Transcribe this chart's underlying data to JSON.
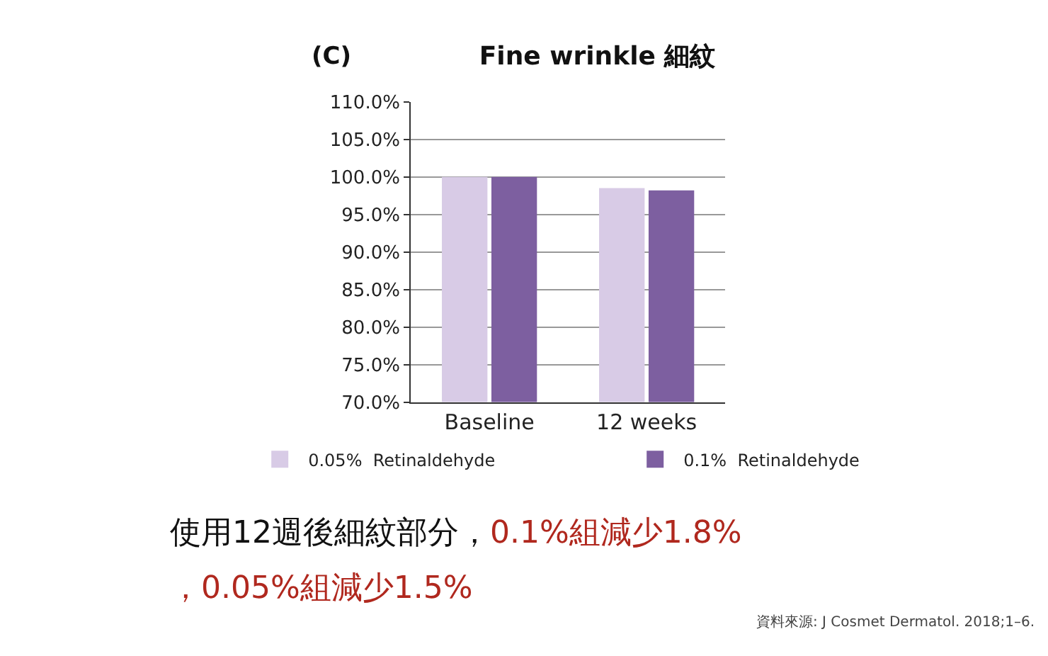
{
  "chart_data": {
    "type": "bar",
    "title": "Fine wrinkle 細紋",
    "categories": [
      "Baseline",
      "12 weeks"
    ],
    "series": [
      {
        "name": "0.05%  Retinaldehyde",
        "color": "#d8cbe6",
        "values": [
          100,
          98.5
        ]
      },
      {
        "name": "0.1%  Retinaldehyde",
        "color": "#7d5fa0",
        "values": [
          100,
          98.2
        ]
      }
    ],
    "ylim": [
      70,
      110
    ],
    "yticks": [
      {
        "value": 70,
        "label": "70.0%"
      },
      {
        "value": 75,
        "label": "75.0%"
      },
      {
        "value": 80,
        "label": "80.0%"
      },
      {
        "value": 85,
        "label": "85.0%"
      },
      {
        "value": 90,
        "label": "90.0%"
      },
      {
        "value": 95,
        "label": "95.0%"
      },
      {
        "value": 100,
        "label": "100.0%"
      },
      {
        "value": 105,
        "label": "105.0%"
      },
      {
        "value": 110,
        "label": "110.0%"
      }
    ],
    "grid": "y",
    "legend": "bottom",
    "annotations": [
      "(C)",
      "使用12週後細紋部分，",
      "0.1%組減少1.8%",
      "，0.05%組減少1.5%",
      "資料來源: J Cosmet Dermatol. 2018;1–6."
    ]
  }
}
